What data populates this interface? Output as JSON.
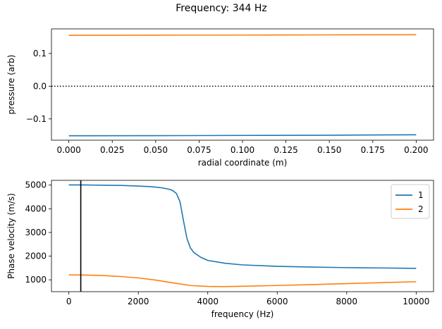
{
  "figure": {
    "title": "Frequency: 344 Hz"
  },
  "colors": {
    "series1": "#1f77b4",
    "series2": "#ff7f0e",
    "marker": "#000000"
  },
  "chart_data": [
    {
      "type": "line",
      "title": "",
      "xlabel": "radial coordinate (m)",
      "ylabel": "pressure (arb)",
      "xlim": [
        -0.01,
        0.21
      ],
      "ylim": [
        -0.165,
        0.175
      ],
      "xticks": [
        0.0,
        0.025,
        0.05,
        0.075,
        0.1,
        0.125,
        0.15,
        0.175,
        0.2
      ],
      "xtick_labels": [
        "0.000",
        "0.025",
        "0.050",
        "0.075",
        "0.100",
        "0.125",
        "0.150",
        "0.175",
        "0.200"
      ],
      "yticks": [
        -0.1,
        0.0,
        0.1
      ],
      "ytick_labels": [
        "−0.1",
        "0.0",
        "0.1"
      ],
      "reference_line": {
        "y": 0.0,
        "style": "dotted"
      },
      "grid": false,
      "series": [
        {
          "x": [
            0.0,
            0.05,
            0.1,
            0.15,
            0.2
          ],
          "values": [
            -0.1515,
            -0.1512,
            -0.1505,
            -0.1497,
            -0.1485
          ]
        },
        {
          "x": [
            0.0,
            0.05,
            0.1,
            0.15,
            0.2
          ],
          "values": [
            0.1555,
            0.1558,
            0.1562,
            0.1567,
            0.1572
          ]
        }
      ]
    },
    {
      "type": "line",
      "title": "",
      "xlabel": "frequency (Hz)",
      "ylabel": "Phase velocity (m/s)",
      "xlim": [
        -500,
        10500
      ],
      "ylim": [
        500,
        5200
      ],
      "xticks": [
        0,
        2000,
        4000,
        6000,
        8000,
        10000
      ],
      "xtick_labels": [
        "0",
        "2000",
        "4000",
        "6000",
        "8000",
        "10000"
      ],
      "yticks": [
        1000,
        2000,
        3000,
        4000,
        5000
      ],
      "ytick_labels": [
        "1000",
        "2000",
        "3000",
        "4000",
        "5000"
      ],
      "vertical_line": {
        "x": 344
      },
      "legend": {
        "position": "upper-right",
        "entries": [
          "1",
          "2"
        ]
      },
      "grid": false,
      "series": [
        {
          "name": "1",
          "x": [
            0,
            500,
            1000,
            1500,
            2000,
            2400,
            2700,
            2900,
            3000,
            3100,
            3200,
            3300,
            3400,
            3500,
            3600,
            3800,
            4000,
            4500,
            5000,
            6000,
            7000,
            8000,
            9000,
            10000
          ],
          "values": [
            5010,
            5005,
            4995,
            4985,
            4960,
            4930,
            4880,
            4820,
            4760,
            4640,
            4300,
            3500,
            2750,
            2350,
            2150,
            1950,
            1820,
            1700,
            1630,
            1570,
            1540,
            1515,
            1500,
            1485
          ]
        },
        {
          "name": "2",
          "x": [
            0,
            500,
            1000,
            1500,
            2000,
            2500,
            3000,
            3500,
            4000,
            4500,
            5000,
            6000,
            7000,
            8000,
            9000,
            10000
          ],
          "values": [
            1210,
            1200,
            1180,
            1140,
            1080,
            990,
            870,
            760,
            720,
            715,
            730,
            760,
            800,
            840,
            880,
            920
          ]
        }
      ]
    }
  ]
}
